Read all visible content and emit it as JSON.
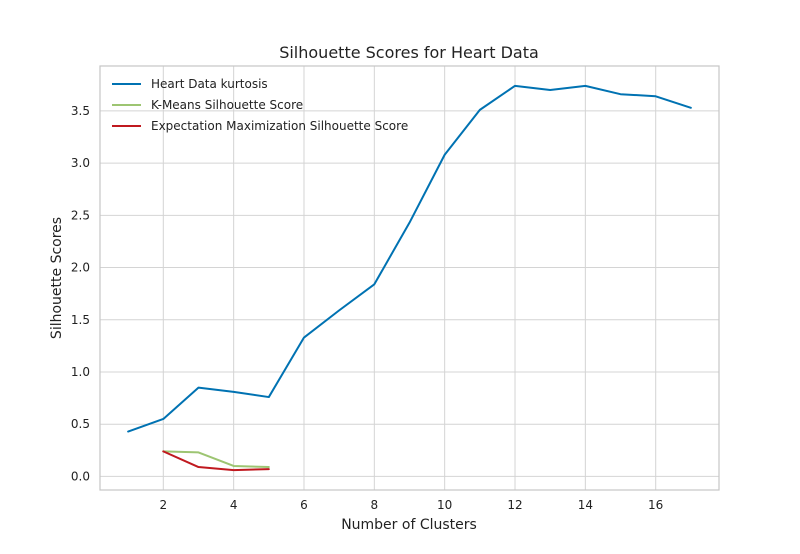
{
  "chart_data": {
    "type": "line",
    "title": "Silhouette Scores for Heart Data",
    "xlabel": "Number of Clusters",
    "ylabel": "Silhouette Scores",
    "xlim": [
      0.2,
      17.8
    ],
    "ylim": [
      -0.13,
      3.93
    ],
    "xticks": [
      2,
      4,
      6,
      8,
      10,
      12,
      14,
      16
    ],
    "yticks": [
      0.0,
      0.5,
      1.0,
      1.5,
      2.0,
      2.5,
      3.0,
      3.5
    ],
    "xtick_labels": [
      "2",
      "4",
      "6",
      "8",
      "10",
      "12",
      "14",
      "16"
    ],
    "ytick_labels": [
      "0.0",
      "0.5",
      "1.0",
      "1.5",
      "2.0",
      "2.5",
      "3.0",
      "3.5"
    ],
    "grid": true,
    "legend_position": "top-left",
    "series": [
      {
        "name": "Heart Data kurtosis",
        "color": "#0072B2",
        "x": [
          1,
          2,
          3,
          4,
          5,
          6,
          7,
          8,
          9,
          10,
          11,
          12,
          13,
          14,
          15,
          16,
          17
        ],
        "y": [
          0.43,
          0.55,
          0.85,
          0.81,
          0.76,
          1.33,
          1.59,
          1.84,
          2.43,
          3.08,
          3.51,
          3.74,
          3.7,
          3.74,
          3.66,
          3.64,
          3.53
        ]
      },
      {
        "name": "K-Means Silhouette Score",
        "color": "#9DC572",
        "x": [
          2,
          3,
          4,
          5
        ],
        "y": [
          0.24,
          0.23,
          0.1,
          0.09
        ]
      },
      {
        "name": "Expectation Maximization Silhouette Score",
        "color": "#C0191F",
        "x": [
          2,
          3,
          4,
          5
        ],
        "y": [
          0.24,
          0.09,
          0.06,
          0.07
        ]
      }
    ]
  }
}
